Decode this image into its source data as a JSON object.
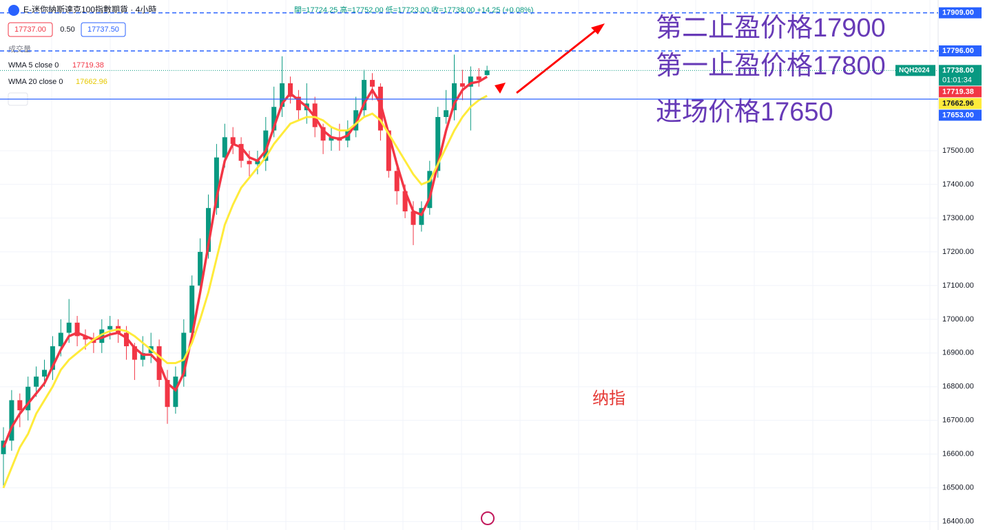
{
  "chart_data": {
    "type": "candlestick",
    "title": "E-迷你納斯達克100指數期貨 · 4小時",
    "ohlc_text": "開=17724.25 高=17752.00 低=17723.00 收=17738.00 +14.25 (+0.08%)",
    "buttons": [
      "17737.00",
      "0.50",
      "17737.50"
    ],
    "volume_label": "成交量",
    "symbol": "NQH2024",
    "countdown": "01:01:34",
    "candles": {
      "up_color": "#089981",
      "down_color": "#f23645",
      "last_label": "17738.00",
      "open": [
        16600,
        16640,
        16760,
        16730,
        16800,
        16830,
        16850,
        16920,
        16960,
        16990,
        16950,
        16940,
        16930,
        16970,
        16980,
        16960,
        16920,
        16880,
        16900,
        16920,
        16820,
        16740,
        16830,
        16960,
        17100,
        17200,
        17330,
        17480,
        17540,
        17520,
        17470,
        17460,
        17470,
        17560,
        17630,
        17700,
        17660,
        17620,
        17640,
        17570,
        17530,
        17540,
        17530,
        17560,
        17620,
        17710,
        17690,
        17560,
        17440,
        17380,
        17320,
        17280,
        17330,
        17440,
        17600,
        17620,
        17700,
        17690,
        17720,
        17724.25
      ],
      "high": [
        16680,
        16790,
        16780,
        16830,
        16860,
        16880,
        16950,
        17000,
        17060,
        17010,
        16970,
        16960,
        17000,
        17010,
        17000,
        16980,
        16930,
        16950,
        16960,
        16940,
        16850,
        16860,
        17000,
        17130,
        17240,
        17370,
        17520,
        17580,
        17570,
        17540,
        17500,
        17500,
        17600,
        17690,
        17780,
        17720,
        17680,
        17700,
        17660,
        17580,
        17570,
        17580,
        17590,
        17660,
        17740,
        17730,
        17700,
        17560,
        17460,
        17400,
        17350,
        17350,
        17470,
        17630,
        17680,
        17785,
        17740,
        17750,
        17745,
        17752
      ],
      "low": [
        16500,
        16610,
        16680,
        16700,
        16770,
        16800,
        16820,
        16890,
        16930,
        16920,
        16910,
        16900,
        16900,
        16940,
        16930,
        16880,
        16820,
        16860,
        16870,
        16800,
        16690,
        16720,
        16800,
        16930,
        17080,
        17180,
        17310,
        17450,
        17490,
        17450,
        17420,
        17430,
        17440,
        17540,
        17600,
        17640,
        17590,
        17580,
        17540,
        17490,
        17500,
        17500,
        17510,
        17540,
        17600,
        17650,
        17530,
        17420,
        17340,
        17300,
        17220,
        17260,
        17310,
        17420,
        17580,
        17590,
        17650,
        17560,
        17690,
        17723
      ],
      "close": [
        16640,
        16760,
        16730,
        16800,
        16830,
        16850,
        16920,
        16960,
        16990,
        16950,
        16940,
        16930,
        16970,
        16980,
        16960,
        16920,
        16880,
        16900,
        16920,
        16820,
        16740,
        16830,
        16960,
        17100,
        17200,
        17330,
        17480,
        17540,
        17520,
        17470,
        17460,
        17470,
        17560,
        17630,
        17700,
        17660,
        17620,
        17640,
        17570,
        17530,
        17540,
        17530,
        17560,
        17620,
        17710,
        17690,
        17560,
        17440,
        17380,
        17320,
        17280,
        17330,
        17440,
        17600,
        17620,
        17700,
        17690,
        17720,
        17710,
        17738
      ]
    },
    "series": [
      {
        "name": "WMA 5 close 0",
        "color": "#f23645",
        "values": [
          16620,
          16680,
          16720,
          16750,
          16780,
          16810,
          16860,
          16910,
          16950,
          16960,
          16950,
          16940,
          16945,
          16955,
          16960,
          16945,
          16915,
          16895,
          16895,
          16870,
          16810,
          16790,
          16840,
          16950,
          17080,
          17220,
          17360,
          17470,
          17520,
          17510,
          17480,
          17470,
          17500,
          17570,
          17640,
          17670,
          17650,
          17630,
          17600,
          17560,
          17540,
          17535,
          17545,
          17580,
          17640,
          17680,
          17640,
          17550,
          17460,
          17380,
          17320,
          17310,
          17360,
          17460,
          17560,
          17640,
          17680,
          17700,
          17705,
          17719.38
        ]
      },
      {
        "name": "WMA 20 close 0",
        "color": "#ffeb3b",
        "values": [
          16500,
          16560,
          16620,
          16660,
          16720,
          16760,
          16800,
          16850,
          16880,
          16900,
          16920,
          16940,
          16955,
          16965,
          16970,
          16965,
          16950,
          16930,
          16910,
          16890,
          16870,
          16870,
          16880,
          16930,
          17000,
          17080,
          17180,
          17280,
          17340,
          17390,
          17420,
          17450,
          17480,
          17520,
          17550,
          17580,
          17590,
          17600,
          17600,
          17590,
          17570,
          17560,
          17560,
          17580,
          17600,
          17610,
          17590,
          17550,
          17510,
          17470,
          17430,
          17400,
          17410,
          17460,
          17510,
          17560,
          17600,
          17630,
          17650,
          17662.96
        ]
      }
    ],
    "hlines": [
      {
        "value": 17909,
        "label": "17909.00",
        "style": "dashed"
      },
      {
        "value": 17796,
        "label": "17796.00",
        "style": "dashed"
      },
      {
        "value": 17653,
        "label": "17653.00",
        "style": "solid"
      }
    ],
    "annotations": [
      "第二止盈价格17900",
      "第一止盈价格17800",
      "进场价格17650",
      "纳指"
    ],
    "ylim": [
      16375,
      17947
    ],
    "yticks": [
      {
        "value": 16400,
        "label": "16400.00"
      },
      {
        "value": 16500,
        "label": "16500.00"
      },
      {
        "value": 16600,
        "label": "16600.00"
      },
      {
        "value": 16700,
        "label": "16700.00"
      },
      {
        "value": 16800,
        "label": "16800.00"
      },
      {
        "value": 16900,
        "label": "16900.00"
      },
      {
        "value": 17000,
        "label": "17000.00"
      },
      {
        "value": 17100,
        "label": "17100.00"
      },
      {
        "value": 17200,
        "label": "17200.00"
      },
      {
        "value": 17300,
        "label": "17300.00"
      },
      {
        "value": 17400,
        "label": "17400.00"
      },
      {
        "value": 17500,
        "label": "17500.00"
      }
    ],
    "grid": true
  }
}
